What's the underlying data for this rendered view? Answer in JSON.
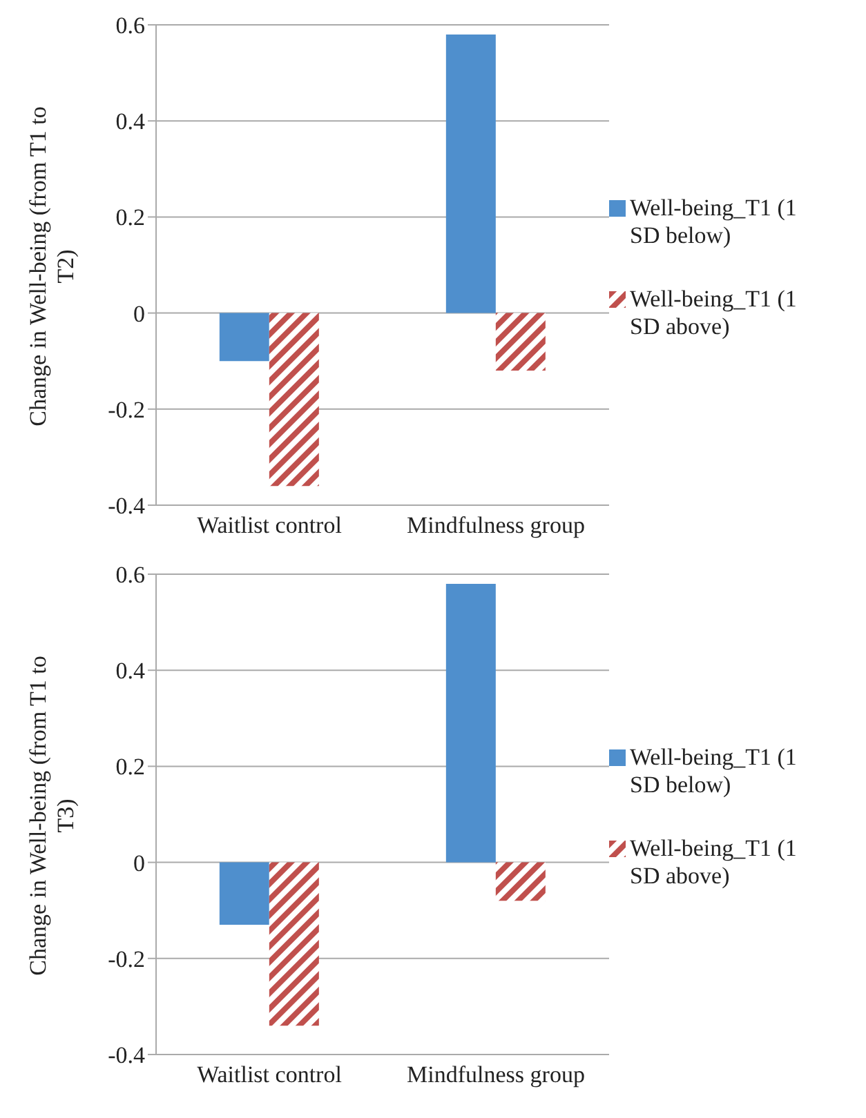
{
  "chart_data": [
    {
      "type": "bar",
      "ylabel": "Change in Well-being (from T1 to T2)",
      "categories": [
        "Waitlist control",
        "Mindfulness group"
      ],
      "series": [
        {
          "name": "Well-being_T1 (1 SD below)",
          "color": "#4f8fcd",
          "values": [
            -0.1,
            0.58
          ]
        },
        {
          "name": "Well-being_T1 (1 SD above)",
          "color": "#c0504d",
          "values": [
            -0.36,
            -0.12
          ]
        }
      ],
      "ylim": [
        -0.4,
        0.6
      ],
      "yticks": [
        -0.4,
        -0.2,
        0,
        0.2,
        0.4,
        0.6
      ],
      "grid": "y",
      "legend": "right"
    },
    {
      "type": "bar",
      "ylabel": "Change in Well-being (from T1 to T3)",
      "categories": [
        "Waitlist control",
        "Mindfulness group"
      ],
      "series": [
        {
          "name": "Well-being_T1 (1 SD below)",
          "color": "#4f8fcd",
          "values": [
            -0.13,
            0.58
          ]
        },
        {
          "name": "Well-being_T1 (1 SD above)",
          "color": "#c0504d",
          "values": [
            -0.34,
            -0.08
          ]
        }
      ],
      "ylim": [
        -0.4,
        0.6
      ],
      "yticks": [
        -0.4,
        -0.2,
        0,
        0.2,
        0.4,
        0.6
      ],
      "grid": "y",
      "legend": "right"
    }
  ]
}
